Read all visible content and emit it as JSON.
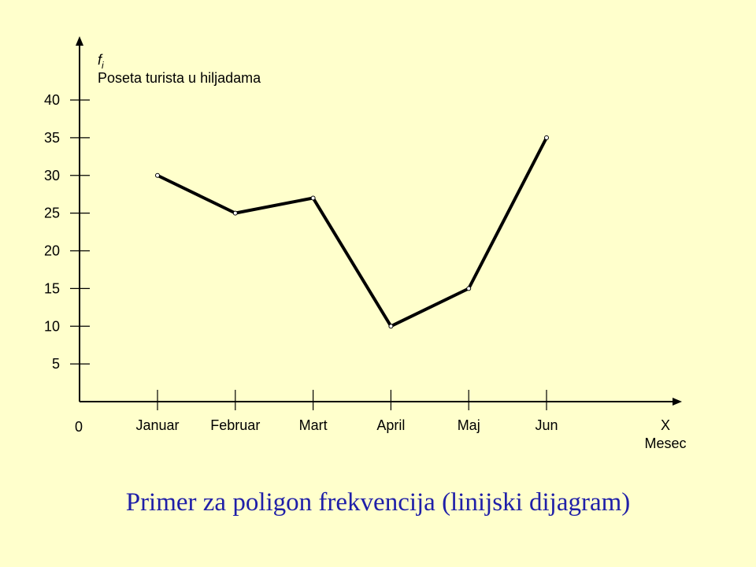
{
  "caption": "Primer za poligon frekvencija (linijski dijagram)",
  "chart_data": {
    "type": "line",
    "title": "",
    "ylabel_symbol": "f",
    "ylabel_subscript": "i",
    "ylabel": "Poseta turista u hiljadama",
    "xlabel_symbol": "X",
    "xlabel": "Mesec",
    "origin_label": "0",
    "categories": [
      "Januar",
      "Februar",
      "Mart",
      "April",
      "Maj",
      "Jun"
    ],
    "series": [
      {
        "values": [
          30,
          25,
          27,
          10,
          15,
          35
        ]
      }
    ],
    "yticks": [
      5,
      10,
      15,
      20,
      25,
      30,
      35,
      40
    ],
    "ylim": [
      0,
      40
    ],
    "grid": false,
    "line_color": "#000000",
    "caption_color": "#1f1fa8",
    "background_color": "#ffffcc"
  }
}
